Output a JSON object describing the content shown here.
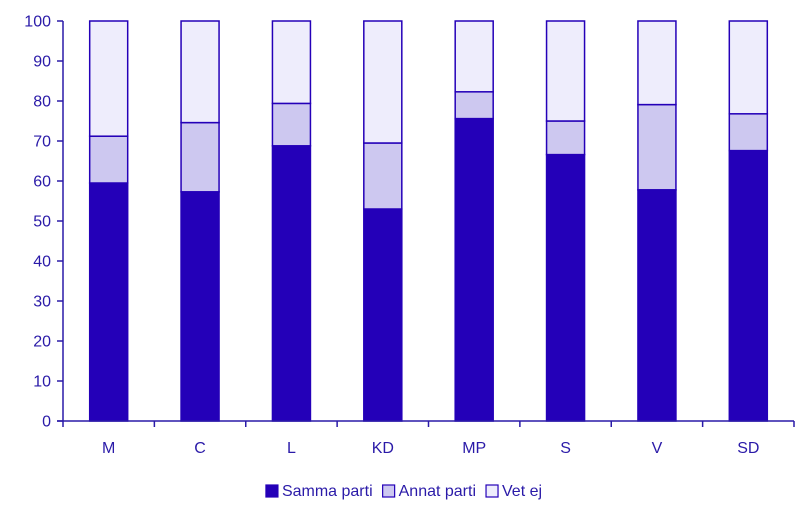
{
  "chart_data": {
    "type": "bar",
    "stacked": true,
    "categories": [
      "M",
      "C",
      "L",
      "KD",
      "MP",
      "S",
      "V",
      "SD"
    ],
    "series": [
      {
        "name": "Samma parti",
        "values": [
          59.5,
          57.3,
          68.8,
          53.0,
          75.6,
          66.6,
          57.8,
          67.6
        ],
        "color": "#2400b8"
      },
      {
        "name": "Annat parti",
        "values": [
          11.7,
          17.3,
          10.6,
          16.5,
          6.7,
          8.4,
          21.3,
          9.2
        ],
        "color": "#cdc8f0"
      },
      {
        "name": "Vet ej",
        "values": [
          28.8,
          25.4,
          20.6,
          30.5,
          17.7,
          25.0,
          20.9,
          23.2
        ],
        "color": "#eeedfc"
      }
    ],
    "ylim": [
      0,
      100
    ],
    "yticks": [
      "0",
      "10",
      "20",
      "30",
      "40",
      "50",
      "60",
      "70",
      "80",
      "90",
      "100"
    ],
    "title": "",
    "xlabel": "",
    "ylabel": "",
    "grid": false,
    "legend": "bottom-center",
    "axis_color": "#2a1aa8",
    "bar_stroke": "#2400b8"
  }
}
